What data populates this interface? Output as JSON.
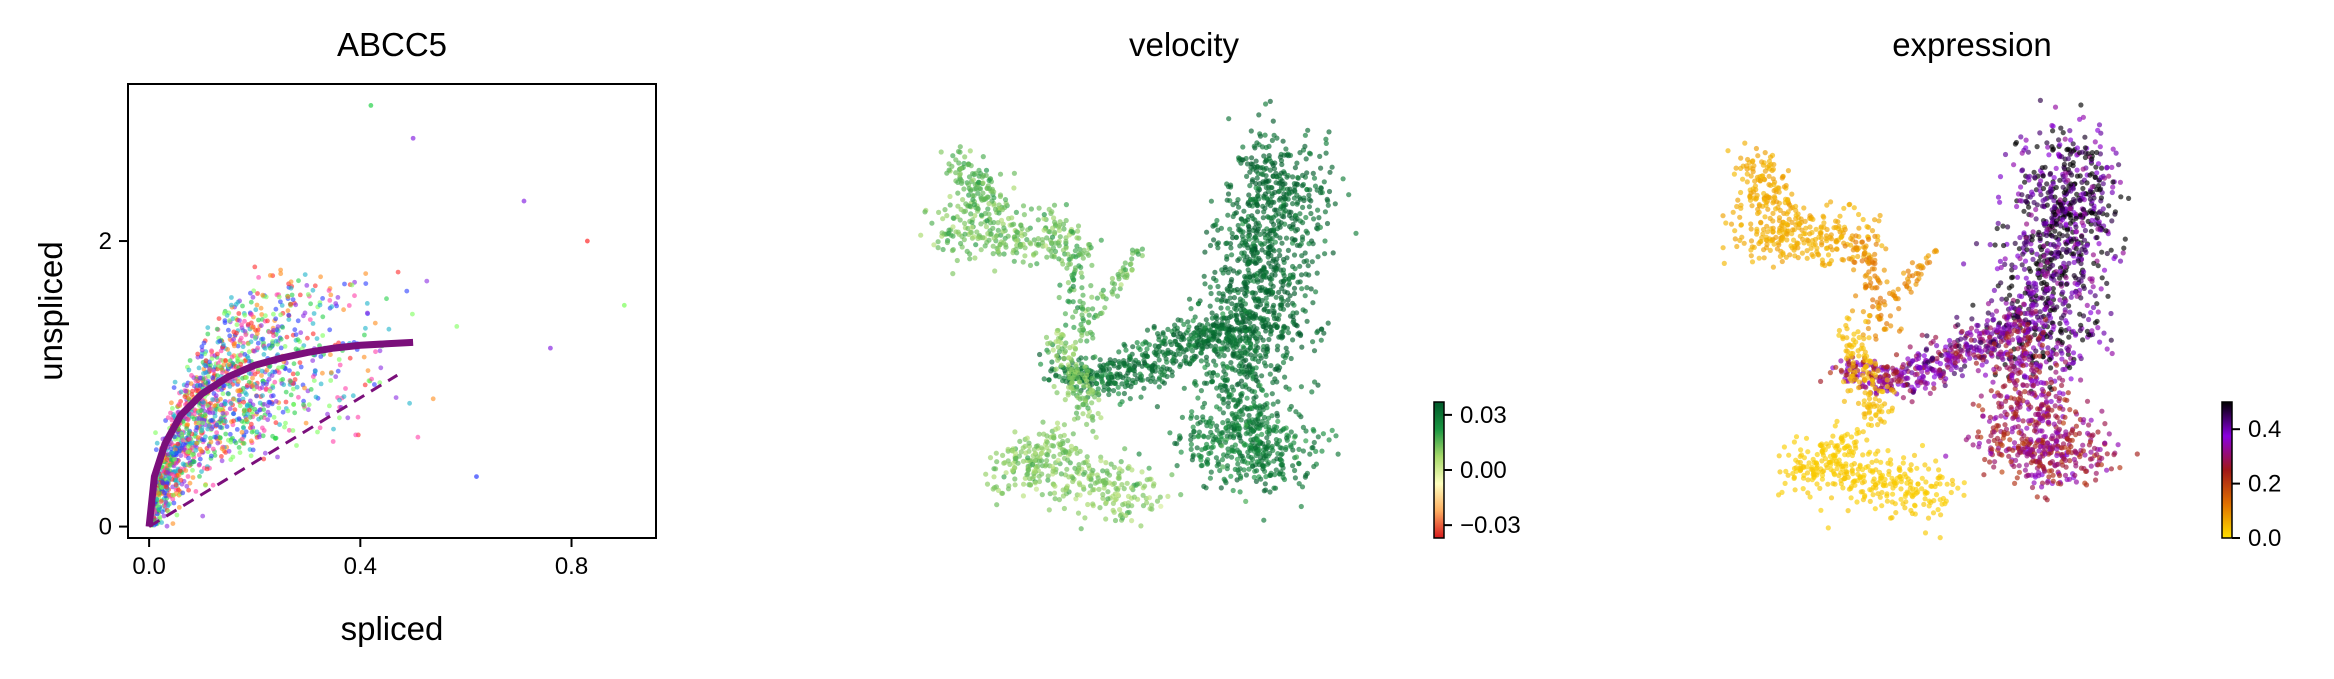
{
  "chart_data": [
    {
      "type": "scatter",
      "title": "ABCC5",
      "xlabel": "spliced",
      "ylabel": "unspliced",
      "xlim": [
        -0.04,
        0.96
      ],
      "ylim": [
        -0.08,
        3.1
      ],
      "xticks": [
        0.0,
        0.4,
        0.8
      ],
      "xtick_labels": [
        "0.0",
        "0.4",
        "0.8"
      ],
      "yticks": [
        0,
        2
      ],
      "ytick_labels": [
        "0",
        "2"
      ],
      "point_colors": [
        "#ff2a2a",
        "#2a3cff",
        "#27d14a",
        "#8a2be2",
        "#ff8c1a",
        "#7cff5a",
        "#ff3da8",
        "#1ab3c9"
      ],
      "n_points": 1500,
      "series": [
        {
          "style": "solid-curve",
          "color": "#7b0f7b",
          "x": [
            0.0,
            0.01,
            0.03,
            0.06,
            0.1,
            0.15,
            0.2,
            0.25,
            0.3,
            0.35,
            0.4,
            0.45,
            0.5
          ],
          "y": [
            0.0,
            0.35,
            0.58,
            0.78,
            0.93,
            1.05,
            1.13,
            1.18,
            1.22,
            1.25,
            1.27,
            1.28,
            1.29
          ]
        },
        {
          "style": "dashed-line",
          "color": "#7b0f7b",
          "x": [
            0.0,
            0.47
          ],
          "y": [
            0.0,
            1.06
          ]
        }
      ]
    },
    {
      "type": "scatter",
      "title": "velocity",
      "colorbar": {
        "ticks": [
          -0.03,
          0.0,
          0.03
        ],
        "tick_labels": [
          "−0.03",
          "0.00",
          "0.03"
        ],
        "colors": [
          "#d7191c",
          "#fdae61",
          "#ffffbf",
          "#a6d96a",
          "#1a9641",
          "#00582a"
        ]
      }
    },
    {
      "type": "scatter",
      "title": "expression",
      "colorbar": {
        "ticks": [
          0.0,
          0.2,
          0.4
        ],
        "tick_labels": [
          "0.0",
          "0.2",
          "0.4"
        ],
        "colors": [
          "#ffe000",
          "#e07000",
          "#a01818",
          "#8a00e0",
          "#000000"
        ]
      }
    }
  ]
}
